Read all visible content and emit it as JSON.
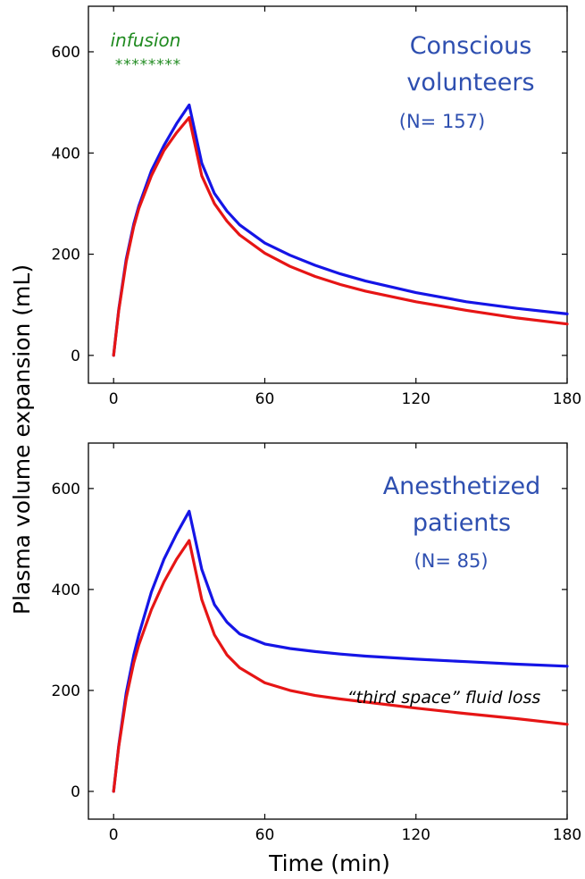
{
  "figure": {
    "ylabel": "Plasma volume expansion (mL)",
    "xlabel": "Time (min)"
  },
  "colors": {
    "blue_line": "#1515e6",
    "red_line": "#e61515",
    "title_blue": "#2e4fb0",
    "annotation_green": "#1f8a1f",
    "axis": "#000000"
  },
  "chart_data": [
    {
      "type": "line",
      "title": "Conscious volunteers",
      "subtitle": "(N= 157)",
      "xlim": [
        -10,
        180
      ],
      "ylim": [
        -55,
        690
      ],
      "xticks": [
        0,
        60,
        120,
        180
      ],
      "yticks": [
        0,
        200,
        400,
        600
      ],
      "annotation": {
        "label": "infusion",
        "marker": "********"
      },
      "series": [
        {
          "color": "blue",
          "x": [
            0,
            2,
            5,
            8,
            10,
            15,
            20,
            25,
            30,
            35,
            40,
            45,
            50,
            60,
            70,
            80,
            90,
            100,
            120,
            140,
            160,
            180
          ],
          "y": [
            0,
            90,
            190,
            260,
            295,
            365,
            415,
            458,
            495,
            380,
            320,
            285,
            258,
            222,
            198,
            178,
            161,
            147,
            124,
            106,
            93,
            82
          ]
        },
        {
          "color": "red",
          "x": [
            0,
            2,
            5,
            8,
            10,
            15,
            20,
            25,
            30,
            35,
            40,
            45,
            50,
            60,
            70,
            80,
            90,
            100,
            120,
            140,
            160,
            180
          ],
          "y": [
            0,
            88,
            185,
            255,
            290,
            355,
            405,
            440,
            470,
            355,
            300,
            265,
            238,
            202,
            176,
            156,
            140,
            127,
            106,
            89,
            74,
            62
          ]
        }
      ]
    },
    {
      "type": "line",
      "title": "Anesthetized patients",
      "subtitle": "(N= 85)",
      "xlim": [
        -10,
        180
      ],
      "ylim": [
        -55,
        690
      ],
      "xticks": [
        0,
        60,
        120,
        180
      ],
      "yticks": [
        0,
        200,
        400,
        600
      ],
      "annotation": {
        "label": "“third space” fluid loss"
      },
      "series": [
        {
          "color": "blue",
          "x": [
            0,
            2,
            5,
            8,
            10,
            15,
            20,
            25,
            30,
            35,
            40,
            45,
            50,
            60,
            70,
            80,
            90,
            100,
            120,
            140,
            160,
            180
          ],
          "y": [
            0,
            90,
            195,
            270,
            310,
            395,
            460,
            510,
            555,
            440,
            370,
            335,
            312,
            292,
            283,
            277,
            272,
            268,
            262,
            257,
            252,
            248
          ]
        },
        {
          "color": "red",
          "x": [
            0,
            2,
            5,
            8,
            10,
            15,
            20,
            25,
            30,
            35,
            40,
            45,
            50,
            60,
            70,
            80,
            90,
            100,
            120,
            140,
            160,
            180
          ],
          "y": [
            0,
            88,
            185,
            255,
            290,
            360,
            415,
            460,
            497,
            380,
            310,
            270,
            245,
            215,
            200,
            190,
            183,
            177,
            165,
            154,
            144,
            133
          ]
        }
      ]
    }
  ]
}
